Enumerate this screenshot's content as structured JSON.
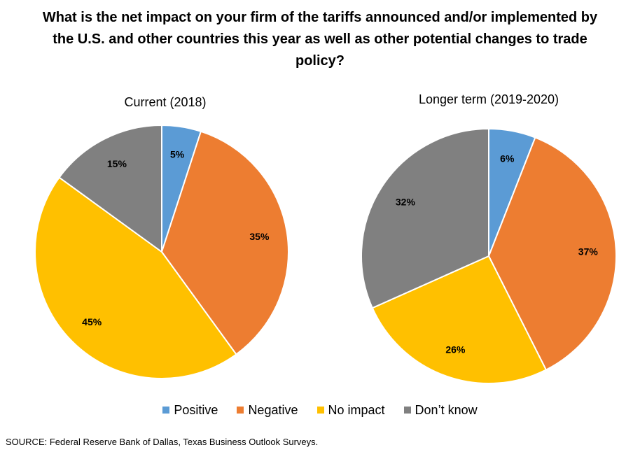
{
  "title": "What is the net impact on your firm of the tariffs announced and/or implemented by the U.S. and other countries this year as well as other potential changes to trade policy?",
  "source": "SOURCE: Federal Reserve Bank of Dallas, Texas Business Outlook Surveys.",
  "legend": [
    {
      "label": "Positive",
      "color": "#5B9BD5"
    },
    {
      "label": "Negative",
      "color": "#ED7D31"
    },
    {
      "label": "No impact",
      "color": "#FFC000"
    },
    {
      "label": "Don’t know",
      "color": "#808080"
    }
  ],
  "chart_data": [
    {
      "type": "pie",
      "title": "Current (2018)",
      "categories": [
        "Positive",
        "Negative",
        "No impact",
        "Don’t know"
      ],
      "values": [
        5,
        35,
        45,
        15
      ],
      "labels": [
        "5%",
        "35%",
        "45%",
        "15%"
      ],
      "colors": [
        "#5B9BD5",
        "#ED7D31",
        "#FFC000",
        "#808080"
      ],
      "legend": "bottom"
    },
    {
      "type": "pie",
      "title": "Longer term (2019-2020)",
      "categories": [
        "Positive",
        "Negative",
        "No impact",
        "Don’t know"
      ],
      "values": [
        6,
        37,
        26,
        32
      ],
      "labels": [
        "6%",
        "37%",
        "26%",
        "32%"
      ],
      "colors": [
        "#5B9BD5",
        "#ED7D31",
        "#FFC000",
        "#808080"
      ],
      "legend": "bottom"
    }
  ]
}
